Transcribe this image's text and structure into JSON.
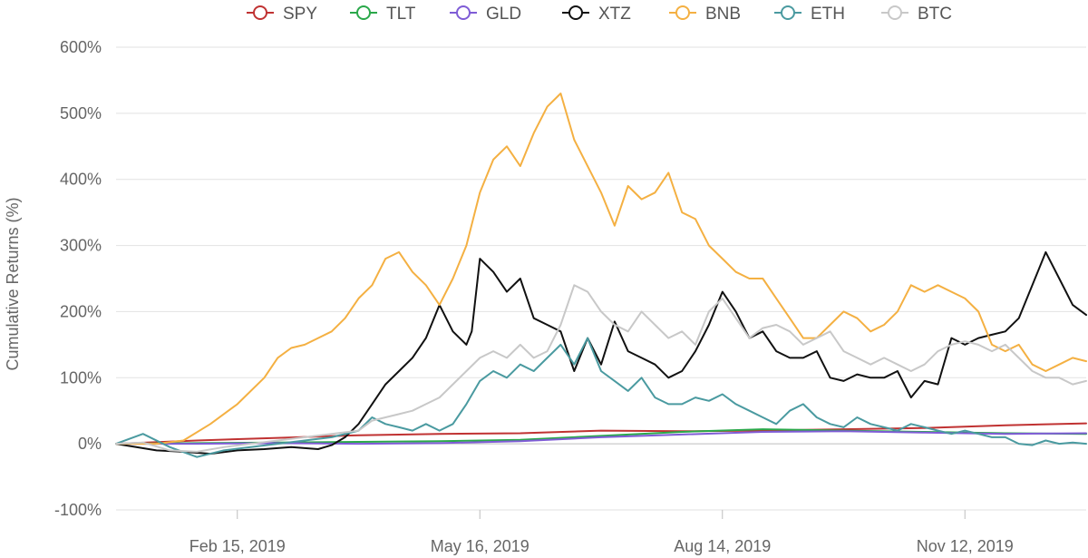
{
  "chart_data": {
    "type": "line",
    "title": "",
    "ylabel": "Cumulative Returns (%)",
    "xlabel": "",
    "ylim": [
      -100,
      600
    ],
    "y_ticks": [
      -100,
      0,
      100,
      200,
      300,
      400,
      500,
      600
    ],
    "y_tick_labels": [
      "-100%",
      "0%",
      "100%",
      "200%",
      "300%",
      "400%",
      "500%",
      "600%"
    ],
    "x_ticks": [
      45,
      135,
      225,
      315
    ],
    "x_tick_labels": [
      "Feb 15, 2019",
      "May 16, 2019",
      "Aug 14, 2019",
      "Nov 12, 2019"
    ],
    "xlim": [
      0,
      360
    ],
    "x_units": "days since Jan 1, 2019",
    "legend_position": "top-center",
    "series": [
      {
        "name": "SPY",
        "color": "#c03232",
        "x": [
          0,
          30,
          60,
          90,
          120,
          150,
          180,
          210,
          240,
          270,
          300,
          330,
          360
        ],
        "y": [
          0,
          5,
          9,
          13,
          15,
          16,
          20,
          19,
          20,
          22,
          24,
          28,
          31
        ]
      },
      {
        "name": "TLT",
        "color": "#2aa84a",
        "x": [
          0,
          30,
          60,
          90,
          120,
          150,
          180,
          210,
          240,
          270,
          300,
          330,
          360
        ],
        "y": [
          0,
          1,
          2,
          3,
          4,
          6,
          12,
          18,
          22,
          20,
          18,
          16,
          15
        ]
      },
      {
        "name": "GLD",
        "color": "#7f5cd6",
        "x": [
          0,
          30,
          60,
          90,
          120,
          150,
          180,
          210,
          240,
          270,
          300,
          330,
          360
        ],
        "y": [
          0,
          0,
          1,
          0,
          1,
          4,
          10,
          14,
          18,
          19,
          17,
          15,
          16
        ]
      },
      {
        "name": "XTZ",
        "color": "#111111",
        "x": [
          0,
          15,
          25,
          35,
          45,
          55,
          65,
          75,
          80,
          85,
          90,
          95,
          100,
          105,
          110,
          115,
          120,
          125,
          130,
          132,
          135,
          140,
          145,
          150,
          155,
          160,
          165,
          170,
          175,
          180,
          185,
          190,
          195,
          200,
          205,
          210,
          215,
          220,
          225,
          230,
          235,
          240,
          245,
          250,
          255,
          260,
          265,
          270,
          275,
          280,
          285,
          290,
          295,
          300,
          305,
          310,
          315,
          320,
          325,
          330,
          335,
          340,
          345,
          350,
          355,
          360
        ],
        "y": [
          0,
          -10,
          -12,
          -15,
          -10,
          -8,
          -5,
          -8,
          -2,
          10,
          30,
          60,
          90,
          110,
          130,
          160,
          210,
          170,
          150,
          170,
          280,
          260,
          230,
          250,
          190,
          180,
          170,
          110,
          160,
          120,
          185,
          140,
          130,
          120,
          100,
          110,
          140,
          180,
          230,
          200,
          160,
          170,
          140,
          130,
          130,
          140,
          100,
          95,
          105,
          100,
          100,
          110,
          70,
          95,
          90,
          160,
          150,
          160,
          165,
          170,
          190,
          240,
          290,
          250,
          210,
          195
        ]
      },
      {
        "name": "BNB",
        "color": "#f4b042",
        "x": [
          0,
          15,
          25,
          35,
          45,
          55,
          60,
          65,
          70,
          75,
          80,
          85,
          90,
          95,
          100,
          105,
          110,
          115,
          120,
          125,
          130,
          135,
          140,
          145,
          150,
          155,
          160,
          165,
          170,
          175,
          180,
          185,
          190,
          195,
          200,
          205,
          210,
          215,
          220,
          225,
          230,
          235,
          240,
          245,
          250,
          255,
          260,
          265,
          270,
          275,
          280,
          285,
          290,
          295,
          300,
          305,
          310,
          315,
          320,
          325,
          330,
          335,
          340,
          345,
          350,
          355,
          360
        ],
        "y": [
          0,
          0,
          5,
          30,
          60,
          100,
          130,
          145,
          150,
          160,
          170,
          190,
          220,
          240,
          280,
          290,
          260,
          240,
          210,
          250,
          300,
          380,
          430,
          450,
          420,
          470,
          510,
          530,
          460,
          420,
          380,
          330,
          390,
          370,
          380,
          410,
          350,
          340,
          300,
          280,
          260,
          250,
          250,
          220,
          190,
          160,
          160,
          180,
          200,
          190,
          170,
          180,
          200,
          240,
          230,
          240,
          230,
          220,
          200,
          150,
          140,
          150,
          120,
          110,
          120,
          130,
          125
        ]
      },
      {
        "name": "ETH",
        "color": "#4a9aa0",
        "x": [
          0,
          10,
          20,
          30,
          40,
          50,
          60,
          70,
          80,
          90,
          95,
          100,
          105,
          110,
          115,
          120,
          125,
          130,
          135,
          140,
          145,
          150,
          155,
          160,
          165,
          170,
          175,
          180,
          185,
          190,
          195,
          200,
          205,
          210,
          215,
          220,
          225,
          230,
          235,
          240,
          245,
          250,
          255,
          260,
          265,
          270,
          275,
          280,
          285,
          290,
          295,
          300,
          305,
          310,
          315,
          320,
          325,
          330,
          335,
          340,
          345,
          350,
          355,
          360
        ],
        "y": [
          0,
          15,
          -5,
          -20,
          -10,
          -5,
          0,
          5,
          10,
          20,
          40,
          30,
          25,
          20,
          30,
          20,
          30,
          60,
          95,
          110,
          100,
          120,
          110,
          130,
          150,
          120,
          160,
          110,
          95,
          80,
          100,
          70,
          60,
          60,
          70,
          65,
          75,
          60,
          50,
          40,
          30,
          50,
          60,
          40,
          30,
          25,
          40,
          30,
          25,
          20,
          30,
          25,
          20,
          15,
          20,
          15,
          10,
          10,
          0,
          -2,
          5,
          0,
          2,
          0
        ]
      },
      {
        "name": "BTC",
        "color": "#c8c8c8",
        "x": [
          0,
          10,
          20,
          30,
          40,
          50,
          60,
          70,
          80,
          90,
          95,
          100,
          105,
          110,
          115,
          120,
          125,
          130,
          135,
          140,
          145,
          150,
          155,
          160,
          165,
          170,
          175,
          180,
          185,
          190,
          195,
          200,
          205,
          210,
          215,
          220,
          225,
          230,
          235,
          240,
          245,
          250,
          255,
          260,
          265,
          270,
          275,
          280,
          285,
          290,
          295,
          300,
          305,
          310,
          315,
          320,
          325,
          330,
          335,
          340,
          345,
          350,
          355,
          360
        ],
        "y": [
          0,
          2,
          -10,
          -12,
          -5,
          0,
          5,
          10,
          15,
          20,
          35,
          40,
          45,
          50,
          60,
          70,
          90,
          110,
          130,
          140,
          130,
          150,
          130,
          140,
          180,
          240,
          230,
          200,
          180,
          170,
          200,
          180,
          160,
          170,
          150,
          200,
          220,
          190,
          160,
          175,
          180,
          170,
          150,
          160,
          170,
          140,
          130,
          120,
          130,
          120,
          110,
          120,
          140,
          150,
          155,
          150,
          140,
          150,
          130,
          110,
          100,
          100,
          90,
          95
        ]
      }
    ]
  }
}
